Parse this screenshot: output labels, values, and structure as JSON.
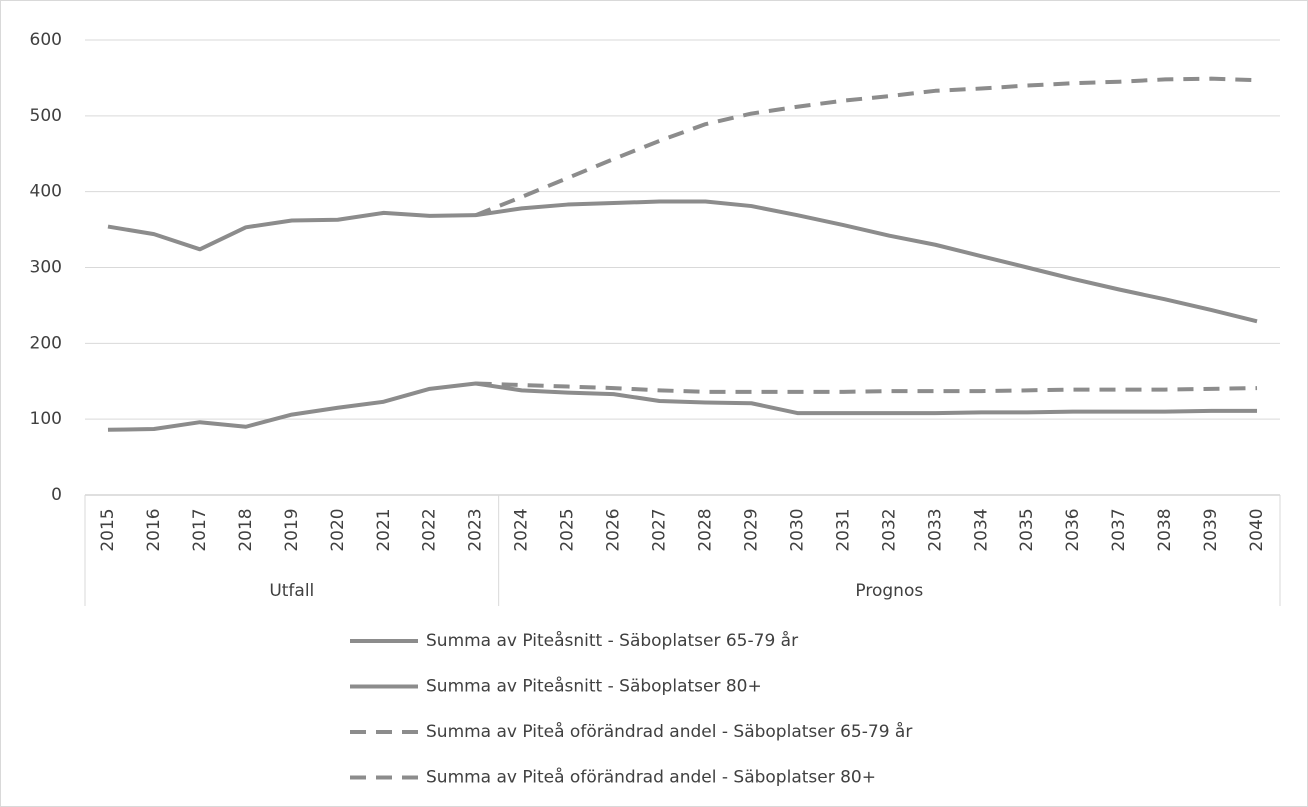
{
  "chart_data": {
    "type": "line",
    "categories": [
      "2015",
      "2016",
      "2017",
      "2018",
      "2019",
      "2020",
      "2021",
      "2022",
      "2023",
      "2024",
      "2025",
      "2026",
      "2027",
      "2028",
      "2029",
      "2030",
      "2031",
      "2032",
      "2033",
      "2034",
      "2035",
      "2036",
      "2037",
      "2038",
      "2039",
      "2040"
    ],
    "groups": [
      {
        "label": "Utfall",
        "start": "2015",
        "end": "2023"
      },
      {
        "label": "Prognos",
        "start": "2024",
        "end": "2040"
      }
    ],
    "ylim": [
      0,
      600
    ],
    "yticks": [
      0,
      100,
      200,
      300,
      400,
      500,
      600
    ],
    "grid": true,
    "legend": "bottom",
    "series": [
      {
        "name": "Summa av Piteåsnitt - Säboplatser 65-79 år",
        "color": "#8c8c8c",
        "dashed": false,
        "values": [
          86,
          87,
          96,
          90,
          106,
          115,
          123,
          140,
          147,
          138,
          135,
          133,
          124,
          122,
          121,
          108,
          108,
          108,
          108,
          109,
          109,
          110,
          110,
          110,
          111,
          111
        ]
      },
      {
        "name": "Summa av Piteåsnitt - Säboplatser 80+",
        "color": "#8c8c8c",
        "dashed": false,
        "values": [
          354,
          344,
          324,
          353,
          362,
          363,
          372,
          368,
          369,
          378,
          383,
          385,
          387,
          387,
          381,
          369,
          356,
          342,
          330,
          315,
          300,
          285,
          271,
          258,
          244,
          229
        ]
      },
      {
        "name": "Summa av Piteå oförändrad andel - Säboplatser 65-79 år",
        "color": "#8c8c8c",
        "dashed": true,
        "values": [
          null,
          null,
          null,
          null,
          null,
          null,
          null,
          null,
          147,
          145,
          143,
          141,
          138,
          136,
          136,
          136,
          136,
          137,
          137,
          137,
          138,
          139,
          139,
          139,
          140,
          141
        ]
      },
      {
        "name": "Summa av Piteå oförändrad andel - Säboplatser 80+",
        "color": "#8c8c8c",
        "dashed": true,
        "values": [
          null,
          null,
          null,
          null,
          null,
          null,
          null,
          null,
          369,
          393,
          418,
          443,
          467,
          489,
          503,
          512,
          520,
          526,
          533,
          536,
          540,
          543,
          545,
          548,
          549,
          547
        ]
      }
    ]
  }
}
